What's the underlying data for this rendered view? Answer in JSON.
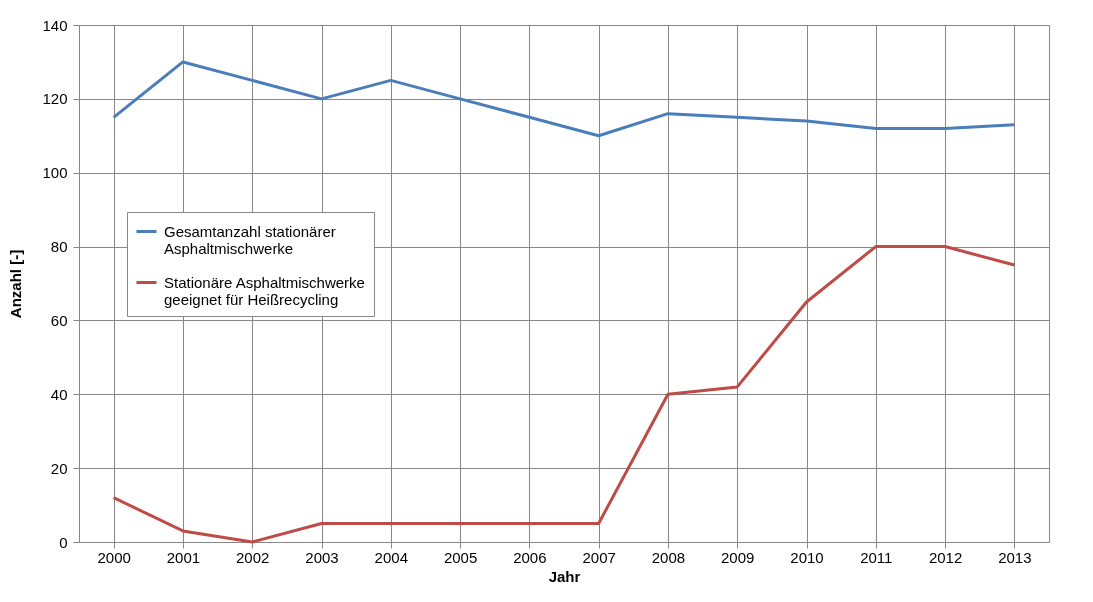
{
  "chart_data": {
    "type": "line",
    "xlabel": "Jahr",
    "ylabel": "Anzahl [-]",
    "categories": [
      "2000",
      "2001",
      "2002",
      "2003",
      "2004",
      "2005",
      "2006",
      "2007",
      "2008",
      "2009",
      "2010",
      "2011",
      "2012",
      "2013"
    ],
    "series": [
      {
        "name": "Gesamtanzahl stationärer Asphaltmischwerke",
        "color": "#4a7ebb",
        "values": [
          115,
          130,
          125,
          120,
          125,
          120,
          115,
          110,
          116,
          115,
          114,
          112,
          112,
          113
        ]
      },
      {
        "name": "Stationäre Asphaltmischwerke geeignet für Heißrecycling",
        "color": "#be4b48",
        "values": [
          12,
          3,
          0,
          5,
          5,
          5,
          5,
          5,
          40,
          42,
          65,
          80,
          80,
          75
        ]
      }
    ],
    "ylim": [
      0,
      140
    ],
    "yticks": [
      0,
      20,
      40,
      60,
      80,
      100,
      120,
      140
    ],
    "grid": true,
    "legend": "left",
    "marker": "none",
    "line_style": "solid"
  }
}
